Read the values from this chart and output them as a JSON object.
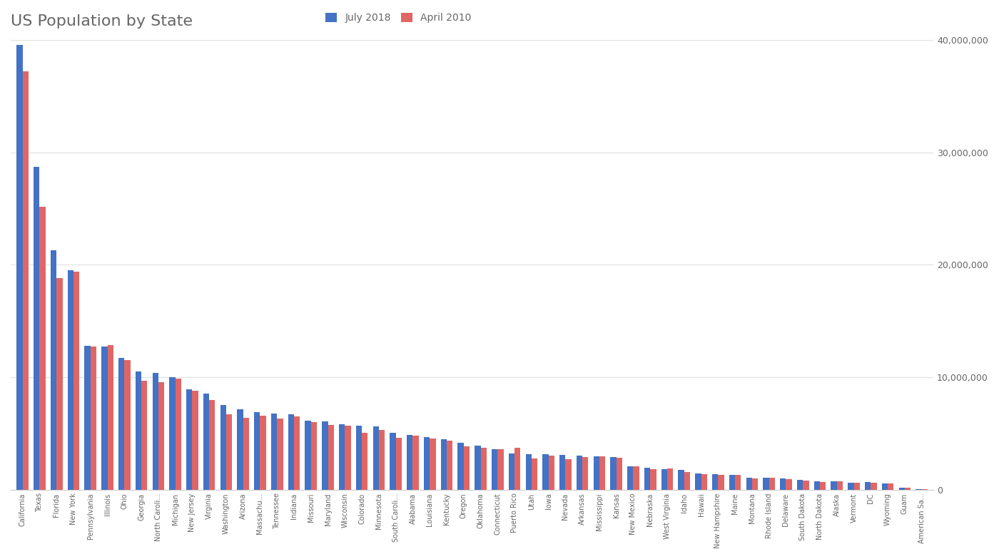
{
  "title": "US Population by State",
  "title_color": "#666666",
  "title_fontsize": 16,
  "legend_labels": [
    "July 2018",
    "April 2010"
  ],
  "bar_colors": [
    "#4472c4",
    "#e06666"
  ],
  "background_color": "#ffffff",
  "chart_bg": "#ffffff",
  "grid_color": "#e0e0e0",
  "ylabel_color": "#666666",
  "xlabel_color": "#666666",
  "ylim": [
    0,
    40000000
  ],
  "yticks": [
    0,
    10000000,
    20000000,
    30000000,
    40000000
  ],
  "ytick_labels": [
    "0",
    "10,000,000",
    "20,000,000",
    "30,000,000",
    "40,000,000"
  ],
  "states": [
    "California",
    "Texas",
    "Florida",
    "New York",
    "Pennsylvania",
    "Illinois",
    "Ohio",
    "Georgia",
    "North Caroli...",
    "Michigan",
    "New Jersey",
    "Virginia",
    "Washington",
    "Arizona",
    "Massachu...",
    "Tennessee",
    "Indiana",
    "Missouri",
    "Maryland",
    "Wisconsin",
    "Colorado",
    "Minnesota",
    "South Caroli...",
    "Alabama",
    "Louisiana",
    "Kentucky",
    "Oregon",
    "Oklahoma",
    "Connecticut",
    "Puerto Rico",
    "Utah",
    "Iowa",
    "Nevada",
    "Arkansas",
    "Mississippi",
    "Kansas",
    "New Mexico",
    "Nebraska",
    "West Virginia",
    "Idaho",
    "Hawaii",
    "New Hampshire",
    "Maine",
    "Montana",
    "Rhode Island",
    "Delaware",
    "South Dakota",
    "North Dakota",
    "Alaska",
    "Vermont",
    "DC",
    "Wyoming",
    "Guam",
    "American Sa..."
  ],
  "july2018": [
    39557991,
    28701845,
    21299325,
    19542209,
    12807060,
    12741080,
    11689442,
    10519475,
    10383620,
    9995915,
    8908520,
    8517685,
    7535591,
    7171646,
    6902149,
    6770010,
    6691878,
    6126452,
    6042718,
    5813568,
    5695564,
    5611179,
    5084127,
    4887871,
    4659978,
    4468402,
    4190713,
    3943079,
    3572665,
    3195153,
    3161105,
    3156145,
    3056824,
    3013825,
    2986530,
    2911505,
    2095428,
    1929268,
    1805832,
    1754208,
    1420491,
    1356458,
    1338404,
    1062305,
    1057315,
    967171,
    882235,
    760077,
    737438,
    623989,
    702455,
    577737,
    167358,
    55679
  ],
  "april2010": [
    37253956,
    25145561,
    18801310,
    19378102,
    12702379,
    12830632,
    11536504,
    9687653,
    9535483,
    9883640,
    8791894,
    8001024,
    6724540,
    6392017,
    6547629,
    6346105,
    6483802,
    5988927,
    5773552,
    5686986,
    5029196,
    5303925,
    4625364,
    4779736,
    4533372,
    4339367,
    3831074,
    3751351,
    3574097,
    3725789,
    2763885,
    3046355,
    2700551,
    2915918,
    2967297,
    2853118,
    2059179,
    1826341,
    1852994,
    1567582,
    1360301,
    1316470,
    1328361,
    989415,
    1052567,
    897934,
    814180,
    672591,
    710231,
    625741,
    601723,
    563626,
    159358,
    55519
  ]
}
